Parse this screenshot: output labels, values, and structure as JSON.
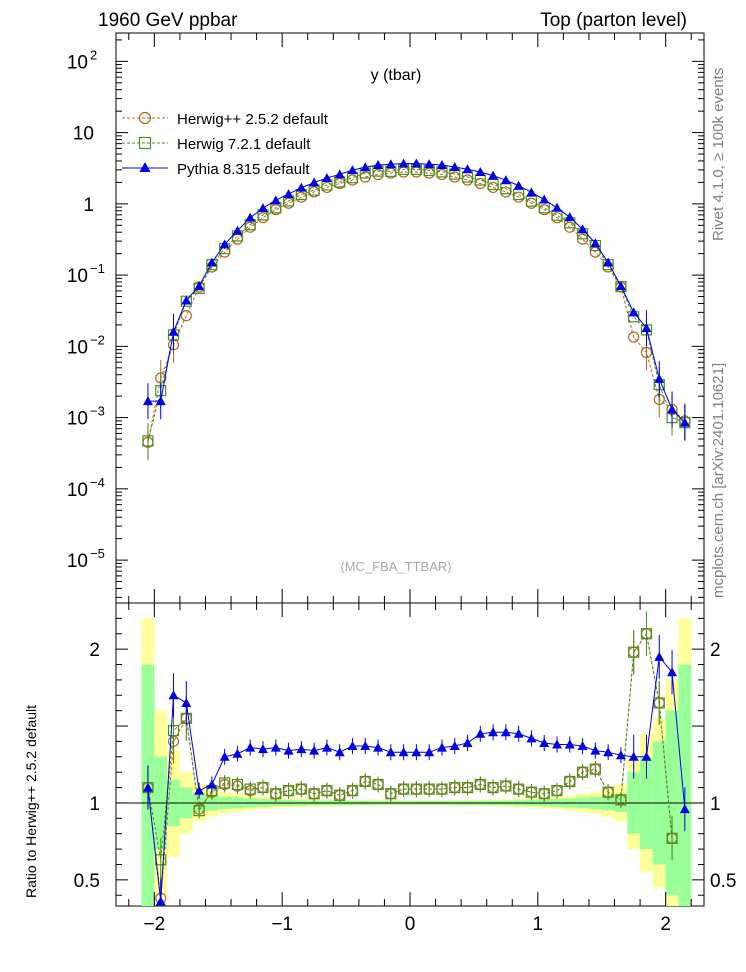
{
  "header": {
    "left": "1960 GeV ppbar",
    "right": "Top (parton level)"
  },
  "side_labels": {
    "rivet": "Rivet 4.1.0, ≥ 100k events",
    "mcplots": "mcplots.cern.ch [arXiv:2401.10621]"
  },
  "chart_data": {
    "type": "line",
    "title": "y (tbar)",
    "watermark": "(MC_FBA_TTBAR)",
    "main": {
      "yscale": "log",
      "ylim": [
        2.5e-06,
        250
      ],
      "xlim": [
        -2.3,
        2.3
      ],
      "y_ticks": [
        {
          "v": 100,
          "base": "10",
          "exp": "2"
        },
        {
          "v": 10,
          "base": "10",
          "exp": ""
        },
        {
          "v": 1,
          "base": "1",
          "exp": ""
        },
        {
          "v": 0.1,
          "base": "10",
          "exp": "−1"
        },
        {
          "v": 0.01,
          "base": "10",
          "exp": "−2"
        },
        {
          "v": 0.001,
          "base": "10",
          "exp": "−3"
        },
        {
          "v": 0.0001,
          "base": "10",
          "exp": "−4"
        },
        {
          "v": 1e-05,
          "base": "10",
          "exp": "−5"
        }
      ]
    },
    "ratio": {
      "ylabel": "Ratio to Herwig++ 2.5.2 default",
      "ylim": [
        0.33,
        2.3
      ],
      "y_ticks": [
        {
          "v": 0.5,
          "label": "0.5"
        },
        {
          "v": 1,
          "label": "1"
        },
        {
          "v": 2,
          "label": "2"
        }
      ]
    },
    "x_ticks": [
      {
        "v": -2,
        "label": "−2"
      },
      {
        "v": -1,
        "label": "−1"
      },
      {
        "v": 0,
        "label": "0"
      },
      {
        "v": 1,
        "label": "1"
      },
      {
        "v": 2,
        "label": "2"
      }
    ],
    "x": [
      -2.05,
      -1.95,
      -1.85,
      -1.75,
      -1.65,
      -1.55,
      -1.45,
      -1.35,
      -1.25,
      -1.15,
      -1.05,
      -0.95,
      -0.85,
      -0.75,
      -0.65,
      -0.55,
      -0.45,
      -0.35,
      -0.25,
      -0.15,
      -0.05,
      0.05,
      0.15,
      0.25,
      0.35,
      0.45,
      0.55,
      0.65,
      0.75,
      0.85,
      0.95,
      1.05,
      1.15,
      1.25,
      1.35,
      1.45,
      1.55,
      1.65,
      1.75,
      1.85,
      1.95,
      2.05,
      2.15
    ],
    "series": [
      {
        "name": "Herwig++ 2.5.2 default",
        "color": "#b5651d",
        "marker": "circle",
        "line": "dashed",
        "values": [
          0.00045,
          0.0036,
          0.0105,
          0.027,
          0.068,
          0.13,
          0.21,
          0.32,
          0.47,
          0.64,
          0.83,
          1.02,
          1.24,
          1.47,
          1.7,
          1.93,
          2.16,
          2.38,
          2.58,
          2.7,
          2.8,
          2.8,
          2.7,
          2.58,
          2.38,
          2.16,
          1.93,
          1.7,
          1.47,
          1.24,
          1.02,
          0.83,
          0.64,
          0.47,
          0.32,
          0.21,
          0.13,
          0.068,
          0.0135,
          0.0082,
          0.0018,
          0.0013,
          0.0009
        ],
        "ratio": [
          1.1,
          0.38,
          1.4,
          1.55,
          0.96,
          1.07,
          1.12,
          1.11,
          1.08,
          1.1,
          1.06,
          1.08,
          1.09,
          1.06,
          1.08,
          1.05,
          1.08,
          1.14,
          1.12,
          1.06,
          1.09,
          1.09,
          1.09,
          1.09,
          1.1,
          1.1,
          1.12,
          1.1,
          1.11,
          1.09,
          1.07,
          1.06,
          1.08,
          1.14,
          1.2,
          1.22,
          1.07,
          1.02,
          1.98,
          2.1,
          1.65,
          0.77,
          null
        ]
      },
      {
        "name": "Herwig 7.2.1 default",
        "color": "#4a8f1e",
        "marker": "square",
        "line": "dashed",
        "values": [
          0.00047,
          0.0024,
          0.0145,
          0.043,
          0.065,
          0.14,
          0.235,
          0.355,
          0.51,
          0.7,
          0.88,
          1.1,
          1.35,
          1.56,
          1.84,
          2.03,
          2.33,
          2.71,
          2.88,
          2.86,
          3.05,
          3.05,
          2.94,
          2.81,
          2.62,
          2.38,
          2.16,
          1.87,
          1.63,
          1.35,
          1.09,
          0.88,
          0.69,
          0.54,
          0.38,
          0.26,
          0.14,
          0.069,
          0.026,
          0.017,
          0.0029,
          0.001,
          0.00085
        ],
        "ratio": [
          1.1,
          0.63,
          1.47,
          1.55,
          0.95,
          1.08,
          1.13,
          1.12,
          1.09,
          1.1,
          1.06,
          1.08,
          1.09,
          1.06,
          1.08,
          1.05,
          1.08,
          1.14,
          1.12,
          1.06,
          1.09,
          1.09,
          1.09,
          1.09,
          1.1,
          1.1,
          1.12,
          1.1,
          1.11,
          1.09,
          1.07,
          1.06,
          1.08,
          1.14,
          1.2,
          1.22,
          1.07,
          1.02,
          1.98,
          2.1,
          1.65,
          0.77,
          null
        ]
      },
      {
        "name": "Pythia 8.315 default",
        "color": "#0000e6",
        "marker": "triangle",
        "line": "solid",
        "values": [
          0.0017,
          0.0017,
          0.016,
          0.044,
          0.07,
          0.15,
          0.27,
          0.42,
          0.64,
          0.87,
          1.12,
          1.37,
          1.69,
          1.99,
          2.31,
          2.59,
          2.97,
          3.26,
          3.51,
          3.59,
          3.68,
          3.68,
          3.59,
          3.51,
          3.29,
          3.06,
          2.8,
          2.49,
          2.15,
          1.8,
          1.45,
          1.15,
          0.88,
          0.65,
          0.44,
          0.28,
          0.15,
          0.07,
          0.03,
          0.018,
          0.0035,
          0.0013,
          0.00085
        ],
        "ratio": [
          1.1,
          0.36,
          1.7,
          1.65,
          1.08,
          1.12,
          1.3,
          1.32,
          1.36,
          1.35,
          1.36,
          1.34,
          1.35,
          1.34,
          1.36,
          1.33,
          1.37,
          1.37,
          1.36,
          1.33,
          1.33,
          1.33,
          1.33,
          1.36,
          1.37,
          1.39,
          1.45,
          1.46,
          1.46,
          1.45,
          1.42,
          1.39,
          1.38,
          1.38,
          1.37,
          1.34,
          1.33,
          1.31,
          1.3,
          1.3,
          1.95,
          1.85,
          0.96
        ]
      }
    ],
    "mc_band": {
      "inner_color": "#99ff99",
      "outer_color": "#ffff99",
      "inner_half_width": [
        0.9,
        0.3,
        0.15,
        0.1,
        0.06,
        0.05,
        0.04,
        0.035,
        0.03,
        0.025,
        0.02,
        0.02,
        0.018,
        0.016,
        0.015,
        0.015,
        0.014,
        0.013,
        0.012,
        0.012,
        0.012,
        0.012,
        0.012,
        0.012,
        0.013,
        0.014,
        0.015,
        0.015,
        0.016,
        0.018,
        0.02,
        0.02,
        0.025,
        0.03,
        0.035,
        0.04,
        0.05,
        0.06,
        0.2,
        0.3,
        0.4,
        0.6,
        0.9
      ],
      "outer_half_width": [
        1.2,
        0.6,
        0.35,
        0.2,
        0.12,
        0.09,
        0.07,
        0.06,
        0.05,
        0.04,
        0.035,
        0.03,
        0.027,
        0.024,
        0.022,
        0.02,
        0.019,
        0.018,
        0.017,
        0.017,
        0.017,
        0.017,
        0.017,
        0.017,
        0.018,
        0.019,
        0.02,
        0.022,
        0.024,
        0.027,
        0.03,
        0.035,
        0.04,
        0.05,
        0.06,
        0.07,
        0.09,
        0.12,
        0.3,
        0.45,
        0.55,
        0.8,
        1.2
      ]
    }
  }
}
